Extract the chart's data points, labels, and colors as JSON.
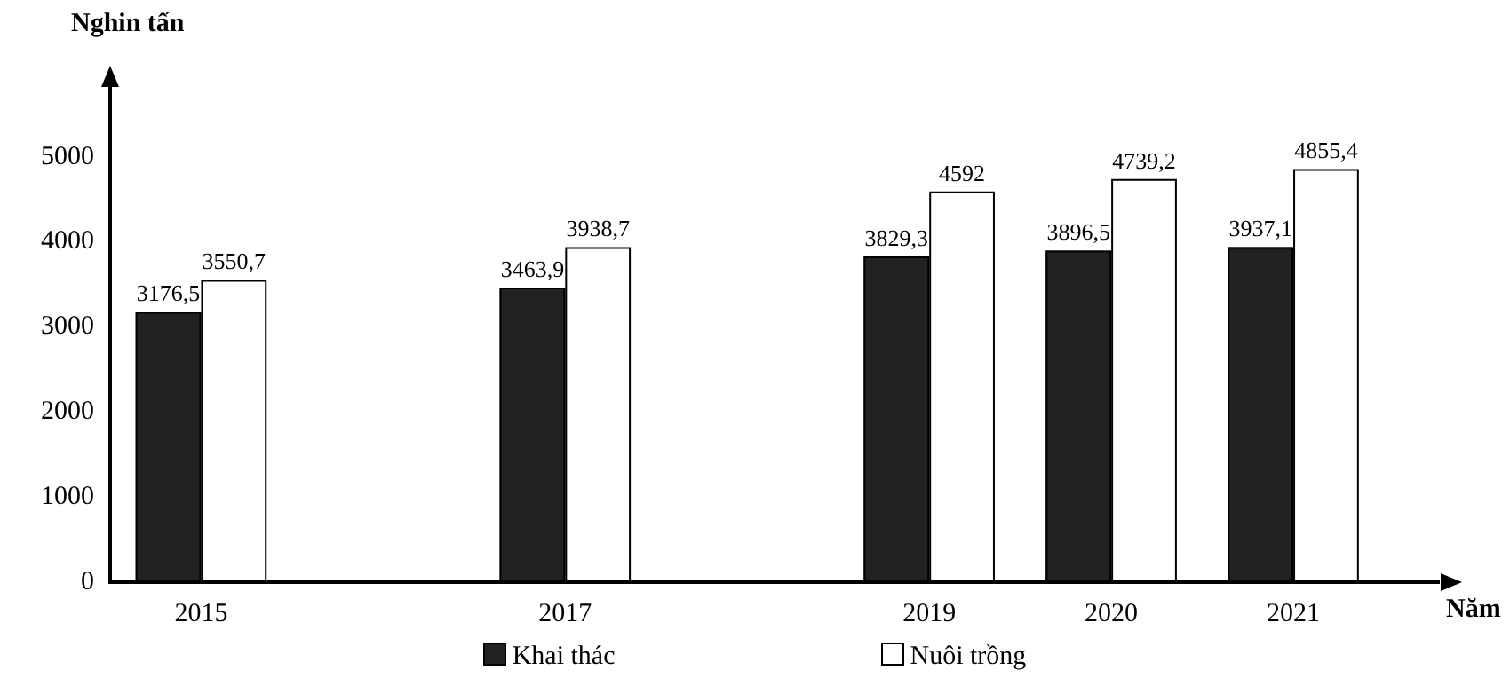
{
  "chart_data": {
    "type": "bar",
    "ylabel": "Nghin tấn",
    "xlabel": "Năm",
    "x": [
      2015,
      2017,
      2019,
      2020,
      2021
    ],
    "series": [
      {
        "name": "Khai thác",
        "color": "#222222",
        "values": [
          3176.5,
          3463.9,
          3829.3,
          3896.5,
          3937.1
        ],
        "value_labels": [
          "3176,5",
          "3463,9",
          "3829,3",
          "3896,5",
          "3937,1"
        ]
      },
      {
        "name": "Nuôi trồng",
        "color": "#ffffff",
        "values": [
          3550.7,
          3938.7,
          4592,
          4739.2,
          4855.4
        ],
        "value_labels": [
          "3550,7",
          "3938,7",
          "4592",
          "4739,2",
          "4855,4"
        ]
      }
    ],
    "xlim": [
      2014.5,
      2021.8
    ],
    "xticks": [
      2015,
      2017,
      2019,
      2020,
      2021
    ],
    "ylim": [
      0,
      5800
    ],
    "yticks": [
      0,
      1000,
      2000,
      3000,
      4000,
      5000
    ],
    "grid": false,
    "legend": "bottom"
  }
}
